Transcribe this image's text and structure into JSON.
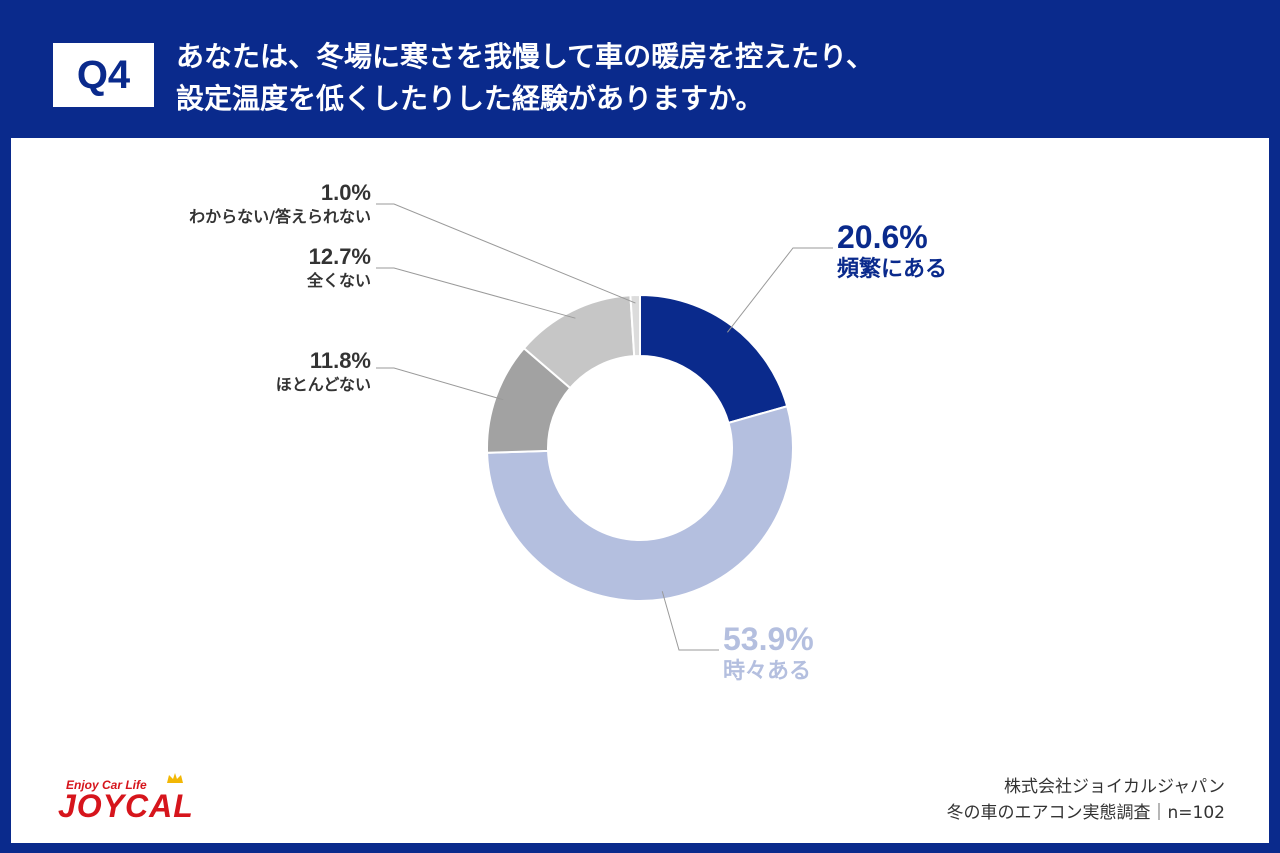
{
  "header": {
    "badge": "Q4",
    "question_line1": "あなたは、冬場に寒さを我慢して車の暖房を控えたり、",
    "question_line2": "設定温度を低くしたりした経験がありますか。"
  },
  "chart_data": {
    "type": "pie",
    "donut": true,
    "categories": [
      "頻繁にある",
      "時々ある",
      "ほとんどない",
      "全くない",
      "わからない/答えられない"
    ],
    "values": [
      20.6,
      53.9,
      11.8,
      12.7,
      1.0
    ],
    "value_labels": [
      "20.6%",
      "53.9%",
      "11.8%",
      "12.7%",
      "1.0%"
    ],
    "colors": [
      "#0a2a8c",
      "#b4bfdf",
      "#a2a2a2",
      "#c6c6c6",
      "#dcdcdc"
    ],
    "label_colors": [
      "#0a2a8c",
      "#b4bfdf",
      "#333333",
      "#333333",
      "#333333"
    ]
  },
  "footer": {
    "logo_tagline": "Enjoy Car Life",
    "logo_name": "JOYCAL",
    "company": "株式会社ジョイカルジャパン",
    "survey": "冬の車のエアコン実態調査｜n=102"
  }
}
